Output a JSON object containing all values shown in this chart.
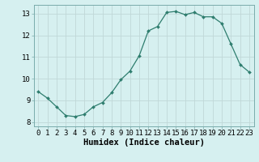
{
  "x": [
    0,
    1,
    2,
    3,
    4,
    5,
    6,
    7,
    8,
    9,
    10,
    11,
    12,
    13,
    14,
    15,
    16,
    17,
    18,
    19,
    20,
    21,
    22,
    23
  ],
  "y": [
    9.4,
    9.1,
    8.7,
    8.3,
    8.25,
    8.35,
    8.7,
    8.9,
    9.35,
    9.95,
    10.35,
    11.05,
    12.2,
    12.4,
    13.05,
    13.1,
    12.95,
    13.05,
    12.85,
    12.85,
    12.55,
    11.6,
    10.65,
    10.3
  ],
  "xlabel": "Humidex (Indice chaleur)",
  "ylim": [
    7.8,
    13.4
  ],
  "xlim": [
    -0.5,
    23.5
  ],
  "yticks": [
    8,
    9,
    10,
    11,
    12,
    13
  ],
  "xticks": [
    0,
    1,
    2,
    3,
    4,
    5,
    6,
    7,
    8,
    9,
    10,
    11,
    12,
    13,
    14,
    15,
    16,
    17,
    18,
    19,
    20,
    21,
    22,
    23
  ],
  "line_color": "#2e7d6e",
  "marker_color": "#2e7d6e",
  "bg_color": "#d6f0f0",
  "grid_color": "#c0d8d8",
  "tick_label_fontsize": 6.5,
  "xlabel_fontsize": 7.5
}
